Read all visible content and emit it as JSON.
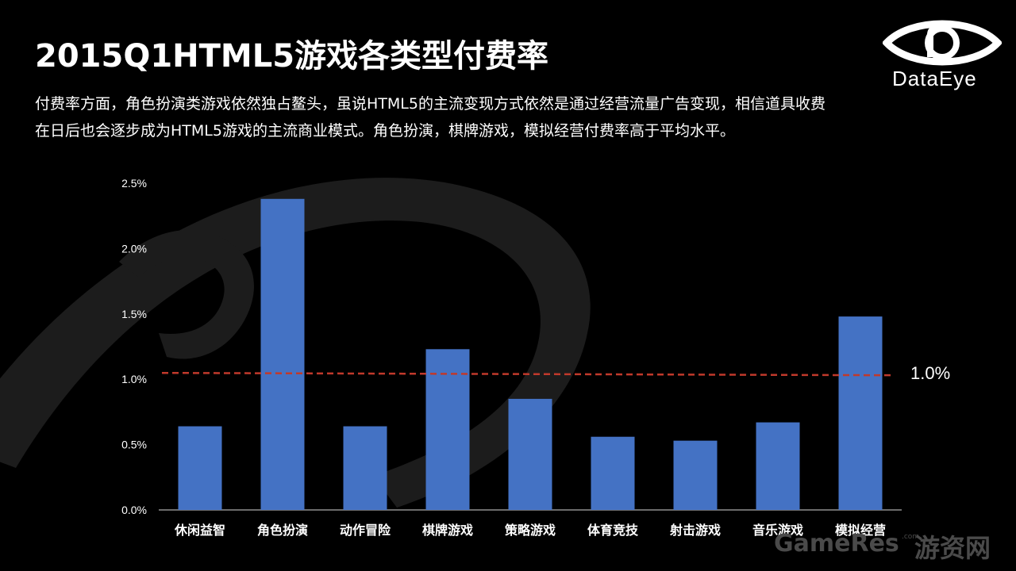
{
  "title": "2015Q1HTML5游戏各类型付费率",
  "description": "付费率方面，角色扮演类游戏依然独占鳌头，虽说HTML5的主流变现方式依然是通过经营流量广告变现，相信道具收费在日后也会逐步成为HTML5游戏的主流商业模式。角色扮演，棋牌游戏，模拟经营付费率高于平均水平。",
  "logo": {
    "text": "DataEye",
    "icon": "eye-logo-icon"
  },
  "watermark": {
    "brand": "GameRes",
    "suffix": ".com",
    "cn": "游资网"
  },
  "colors": {
    "background": "#000000",
    "bar": "#4472c4",
    "average_line": "#c0392b",
    "text": "#ffffff"
  },
  "chart_data": {
    "type": "bar",
    "categories": [
      "休闲益智",
      "角色扮演",
      "动作冒险",
      "棋牌游戏",
      "策略游戏",
      "体育竞技",
      "射击游戏",
      "音乐游戏",
      "模拟经营"
    ],
    "values": [
      0.64,
      2.38,
      0.64,
      1.23,
      0.85,
      0.56,
      0.53,
      0.67,
      1.48
    ],
    "unit": "%",
    "ylim": [
      0,
      2.5
    ],
    "yticks": [
      "0.0%",
      "0.5%",
      "1.0%",
      "1.5%",
      "2.0%",
      "2.5%"
    ],
    "ytick_values": [
      0,
      0.5,
      1.0,
      1.5,
      2.0,
      2.5
    ],
    "average": {
      "value": 1.0,
      "label": "1.0%",
      "style": "dashed"
    },
    "grid": false,
    "legend": "none"
  }
}
